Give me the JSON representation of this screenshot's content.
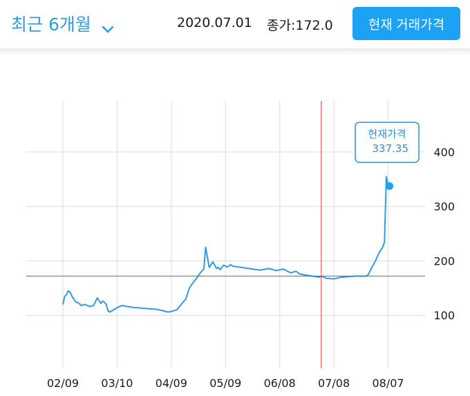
{
  "header": {
    "period_label": "최근 6개월",
    "date": "2020.07.01",
    "close_label": "종가:172.0",
    "button_label": "현재 거래가격"
  },
  "colors": {
    "accent": "#1da1f2",
    "line": "#2f9be5",
    "crosshair": "#e53935",
    "grid": "#dcdcdc"
  },
  "chart_data": {
    "type": "line",
    "x_tick_labels": [
      "02/09",
      "03/10",
      "04/09",
      "05/09",
      "06/08",
      "07/08",
      "08/07"
    ],
    "y_ticks": [
      100,
      200,
      300,
      400
    ],
    "y_tick_labels": [
      "100",
      "200",
      "300",
      "400"
    ],
    "ylim": [
      0,
      500
    ],
    "xlim": [
      "2020-02-08",
      "2020-08-14"
    ],
    "grid": true,
    "y_axis_position": "right",
    "crosshair": {
      "x": "2020-07-01",
      "y": 172.0
    },
    "current": {
      "label": "현재가격",
      "value_label": "337.35",
      "x": "2020-08-07",
      "value": 337.35
    },
    "series": [
      {
        "x": [
          "2020-02-09",
          "2020-02-10",
          "2020-02-11",
          "2020-02-12",
          "2020-02-13",
          "2020-02-14",
          "2020-02-16",
          "2020-02-18",
          "2020-02-19",
          "2020-02-21",
          "2020-02-24",
          "2020-02-26",
          "2020-02-28",
          "2020-03-01",
          "2020-03-02",
          "2020-03-03",
          "2020-03-04",
          "2020-03-05",
          "2020-03-06",
          "2020-03-08",
          "2020-03-10",
          "2020-03-12",
          "2020-03-13",
          "2020-03-14",
          "2020-03-16",
          "2020-03-18",
          "2020-03-20",
          "2020-03-22",
          "2020-03-24",
          "2020-03-28",
          "2020-04-01",
          "2020-04-05",
          "2020-04-07",
          "2020-04-09",
          "2020-04-12",
          "2020-04-15",
          "2020-04-17",
          "2020-04-19",
          "2020-04-21",
          "2020-04-23",
          "2020-04-25",
          "2020-04-27",
          "2020-04-28",
          "2020-04-30",
          "2020-05-02",
          "2020-05-04",
          "2020-05-05",
          "2020-05-06",
          "2020-05-07",
          "2020-05-08",
          "2020-05-09",
          "2020-05-10",
          "2020-05-11",
          "2020-05-12",
          "2020-05-13",
          "2020-05-16",
          "2020-05-20",
          "2020-05-24",
          "2020-05-28",
          "2020-06-02",
          "2020-06-06",
          "2020-06-10",
          "2020-06-14",
          "2020-06-17",
          "2020-06-19",
          "2020-06-22",
          "2020-06-26",
          "2020-06-30",
          "2020-07-01",
          "2020-07-04",
          "2020-07-08",
          "2020-07-12",
          "2020-07-16",
          "2020-07-20",
          "2020-07-24",
          "2020-07-26",
          "2020-07-27",
          "2020-07-29",
          "2020-07-31",
          "2020-08-02",
          "2020-08-04",
          "2020-08-05",
          "2020-08-06",
          "2020-08-07"
        ],
        "values": [
          120,
          135,
          138,
          145,
          142,
          135,
          125,
          122,
          118,
          120,
          116,
          118,
          132,
          122,
          126,
          124,
          120,
          108,
          106,
          110,
          114,
          117,
          118,
          117,
          116,
          115,
          114,
          114,
          113,
          112,
          111,
          108,
          106,
          107,
          110,
          122,
          130,
          150,
          160,
          168,
          178,
          185,
          225,
          188,
          198,
          186,
          188,
          184,
          188,
          192,
          190,
          189,
          191,
          193,
          190,
          189,
          187,
          185,
          183,
          186,
          182,
          185,
          178,
          181,
          176,
          174,
          172,
          170,
          172,
          168,
          167,
          170,
          171,
          172,
          172,
          172,
          175,
          188,
          200,
          215,
          225,
          235,
          355,
          337.35
        ]
      }
    ]
  }
}
